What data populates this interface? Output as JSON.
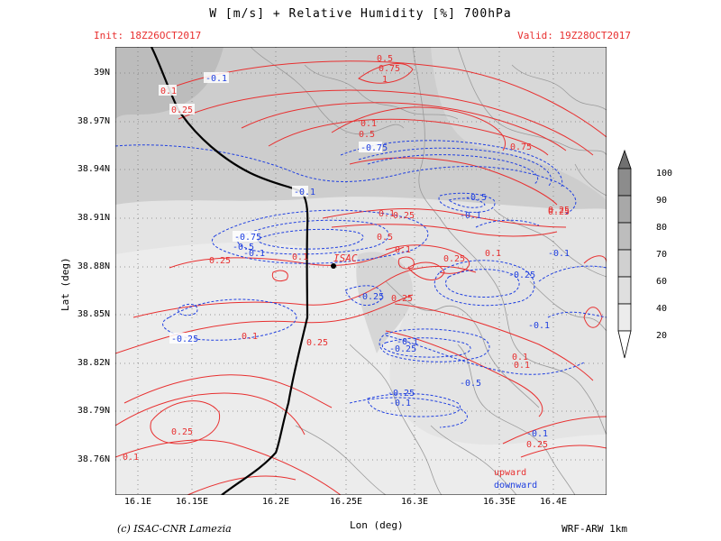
{
  "header": {
    "title": "W [m/s] + Relative Humidity [%] 700hPa",
    "init": "Init: 18Z26OCT2017",
    "valid": "Valid: 19Z28OCT2017"
  },
  "axes": {
    "ylabel": "Lat (deg)",
    "xlabel": "Lon (deg)",
    "yticks": [
      "39N",
      "38.97N",
      "38.94N",
      "38.91N",
      "38.88N",
      "38.85N",
      "38.82N",
      "38.79N",
      "38.76N"
    ],
    "xticks": [
      "16.1E",
      "16.15E",
      "16.2E",
      "16.25E",
      "16.3E",
      "16.35E",
      "16.4E"
    ]
  },
  "legend": {
    "upward": "upward",
    "downward": "downward",
    "up_color": "#e83030",
    "down_color": "#2040e0"
  },
  "colorbar": {
    "labels": [
      "100",
      "90",
      "80",
      "70",
      "60",
      "40",
      "20"
    ]
  },
  "station": {
    "name": "ISAC"
  },
  "footer": {
    "credit": "(c) ISAC-CNR Lamezia",
    "model": "WRF-ARW 1km"
  },
  "contour_labels": {
    "red": [
      "0.1",
      "0.25",
      "0.5",
      "0.75",
      "1",
      "0.1",
      "0.25",
      "0.1",
      "0.25",
      "0.5",
      "0.1",
      "0.25",
      "0.1",
      "0.25",
      "0.25",
      "0.1",
      "0.25",
      "0.1",
      "0.1",
      "0.25",
      "0.1",
      "0.25",
      "0.1",
      "0.25",
      "0.75",
      "1",
      "0.5"
    ],
    "blue": [
      "-0.1",
      "-0.1",
      "-0.25",
      "-0.75",
      "-0.5",
      "-0.1",
      "-0.25",
      "-0.1",
      "-0.75",
      "-0.5",
      "-0.25",
      "-0.1",
      "-0.1",
      "-0.1",
      "-0.1",
      "-0.25",
      "-0.25",
      "-0.5",
      "-0.1",
      "-0.25",
      "-0.1"
    ]
  }
}
